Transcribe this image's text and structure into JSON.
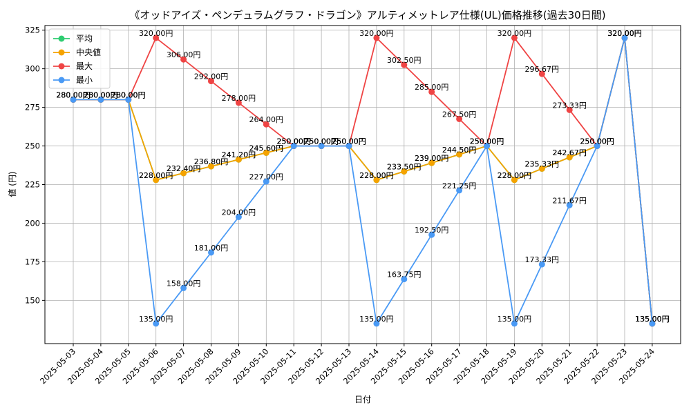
{
  "chart_data": {
    "type": "line",
    "title": "《オッドアイズ・ペンデュラムグラフ・ドラゴン》アルティメットレア仕様(UL)価格推移(過去30日間)",
    "xlabel": "日付",
    "ylabel": "値 (円)",
    "ylim": [
      122,
      328
    ],
    "yticks": [
      150,
      175,
      200,
      225,
      250,
      275,
      300,
      325
    ],
    "grid": true,
    "legend_position": "top-left",
    "value_suffix": "円",
    "categories": [
      "2025-05-03",
      "2025-05-04",
      "2025-05-05",
      "2025-05-06",
      "2025-05-07",
      "2025-05-08",
      "2025-05-09",
      "2025-05-10",
      "2025-05-11",
      "2025-05-12",
      "2025-05-13",
      "2025-05-14",
      "2025-05-15",
      "2025-05-16",
      "2025-05-17",
      "2025-05-18",
      "2025-05-19",
      "2025-05-20",
      "2025-05-21",
      "2025-05-22",
      "2025-05-23",
      "2025-05-24"
    ],
    "series": [
      {
        "name": "平均",
        "color": "#2ecc71",
        "values": [
          280,
          280,
          280,
          228,
          232.4,
          236.8,
          241.2,
          245.6,
          250,
          250,
          250,
          228,
          233.5,
          239,
          244.5,
          250,
          228,
          235.33,
          242.67,
          250,
          320,
          135
        ]
      },
      {
        "name": "中央値",
        "color": "#f5a300",
        "values": [
          280,
          280,
          280,
          228,
          232.4,
          236.8,
          241.2,
          245.6,
          250,
          250,
          250,
          228,
          233.5,
          239,
          244.5,
          250,
          228,
          235.33,
          242.67,
          250,
          320,
          135
        ]
      },
      {
        "name": "最大",
        "color": "#ef4444",
        "values": [
          280,
          280,
          280,
          320,
          306,
          292,
          278,
          264,
          250,
          250,
          250,
          320,
          302.5,
          285,
          267.5,
          250,
          320,
          296.67,
          273.33,
          250,
          320,
          135
        ]
      },
      {
        "name": "最小",
        "color": "#4a9af5",
        "values": [
          280,
          280,
          280,
          135,
          158,
          181,
          204,
          227,
          250,
          250,
          250,
          135,
          163.75,
          192.5,
          221.25,
          250,
          135,
          173.33,
          211.67,
          250,
          320,
          135
        ]
      }
    ]
  }
}
